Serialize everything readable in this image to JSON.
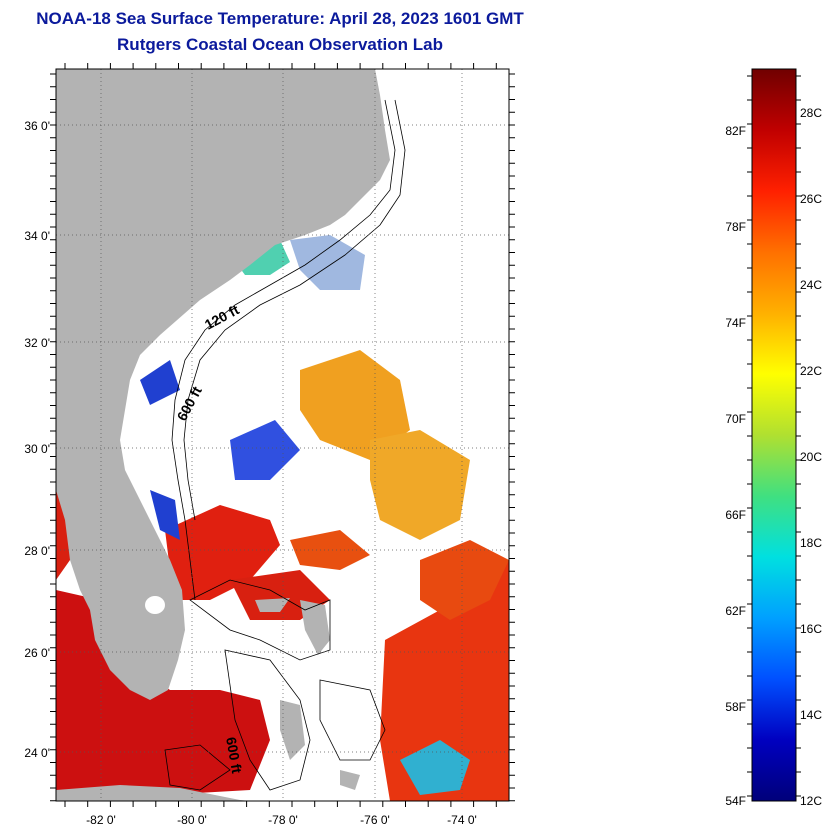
{
  "header": {
    "title": "NOAA-18 Sea Surface Temperature:  April 28, 2023 1601 GMT",
    "subtitle": "Rutgers Coastal Ocean Observation Lab"
  },
  "map": {
    "lat_labels": [
      "36 0'",
      "34 0'",
      "32 0'",
      "30 0'",
      "28 0'",
      "26 0'",
      "24 0'"
    ],
    "lon_labels": [
      "-82 0'",
      "-80 0'",
      "-78 0'",
      "-76 0'",
      "-74 0'"
    ],
    "isobath_labels": [
      "120 ft",
      "600 ft",
      "600 ft"
    ],
    "colors": {
      "land": "#b3b3b3",
      "water_no_data": "#ffffff",
      "warm": "#d01010",
      "cool": "#1030d0"
    }
  },
  "colorbar": {
    "f_labels": [
      "82F",
      "78F",
      "74F",
      "70F",
      "66F",
      "62F",
      "58F",
      "54F"
    ],
    "c_labels": [
      "28C",
      "26C",
      "24C",
      "22C",
      "20C",
      "18C",
      "16C",
      "14C",
      "12C"
    ],
    "gradient": [
      "#700000",
      "#c00000",
      "#ff2000",
      "#ff7000",
      "#ffb000",
      "#ffff00",
      "#b0e030",
      "#40e080",
      "#00e0e0",
      "#00a0ff",
      "#0050ff",
      "#0000c0",
      "#00007a"
    ]
  }
}
